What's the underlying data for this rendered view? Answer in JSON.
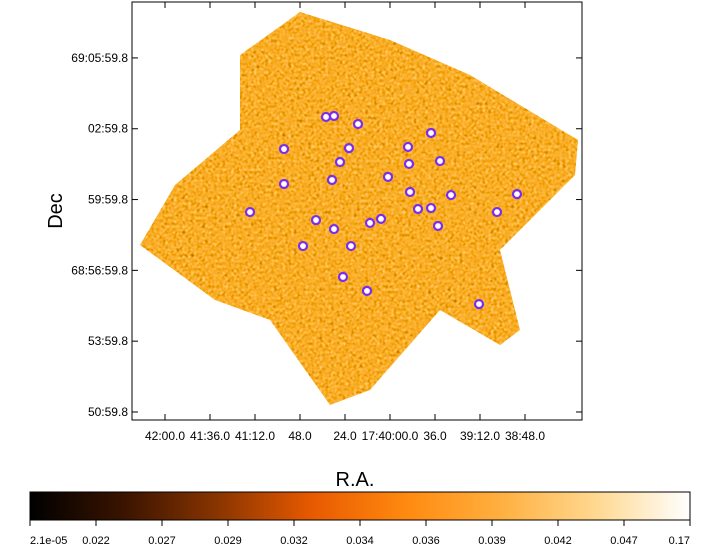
{
  "chart_data": [
    {
      "type": "scatter",
      "xlabel": "R.A.",
      "ylabel": "Dec",
      "xlim": [
        2537.6,
        2297.6
      ],
      "ylim": [
        4130.66,
        4148.37
      ],
      "xticks": [
        {
          "value": 2520,
          "label": "42:00.0"
        },
        {
          "value": 2496,
          "label": "41:36.0"
        },
        {
          "value": 2472,
          "label": "41:12.0"
        },
        {
          "value": 2448,
          "label": "48.0"
        },
        {
          "value": 2424,
          "label": "24.0"
        },
        {
          "value": 2400,
          "label": "17:40:00.0"
        },
        {
          "value": 2376,
          "label": "36.0"
        },
        {
          "value": 2352,
          "label": "39:12.0"
        },
        {
          "value": 2328,
          "label": "38:48.0"
        }
      ],
      "yticks": [
        {
          "value": 4146,
          "label": "69:05:59.8"
        },
        {
          "value": 4143,
          "label": "02:59.8"
        },
        {
          "value": 4140,
          "label": "59:59.8"
        },
        {
          "value": 4137,
          "label": "68:56:59.8"
        },
        {
          "value": 4134,
          "label": "53:59.8"
        },
        {
          "value": 4131,
          "label": "50:59.8"
        }
      ],
      "series": [
        {
          "color": "#7a2cf0",
          "x": [
            2474.67,
            2456.53,
            2456.53,
            2434.13,
            2429.87,
            2417.07,
            2421.87,
            2426.67,
            2430.93,
            2439.47,
            2446.4,
            2429.87,
            2420.8,
            2425.07,
            2412.27,
            2410.67,
            2404.8,
            2401.07,
            2390.4,
            2389.87,
            2389.33,
            2385.07,
            2378.13,
            2378.13,
            2373.33,
            2367.47,
            2374.4,
            2342.93,
            2332.27,
            2352.53
          ],
          "y": [
            4139.47,
            4142.14,
            4140.66,
            4143.5,
            4143.54,
            4143.2,
            4142.18,
            4141.59,
            4140.83,
            4139.13,
            4138.03,
            4138.75,
            4138.03,
            4136.72,
            4136.13,
            4139.01,
            4139.18,
            4140.96,
            4142.23,
            4141.51,
            4140.32,
            4139.6,
            4139.64,
            4142.82,
            4141.63,
            4140.19,
            4138.88,
            4139.47,
            4140.23,
            4135.57
          ]
        }
      ]
    },
    {
      "type": "colorbar",
      "colors": [
        "#000000",
        "#3a1400",
        "#8a3500",
        "#e85a00",
        "#ff8a10",
        "#ffb040",
        "#ffd890",
        "#ffffff"
      ],
      "ticks": [
        {
          "value": 2.1e-05,
          "label": "2.1e-05"
        },
        0.022,
        0.027,
        0.029,
        0.032,
        0.034,
        0.036,
        0.039,
        0.042,
        0.047,
        0.17
      ]
    }
  ]
}
